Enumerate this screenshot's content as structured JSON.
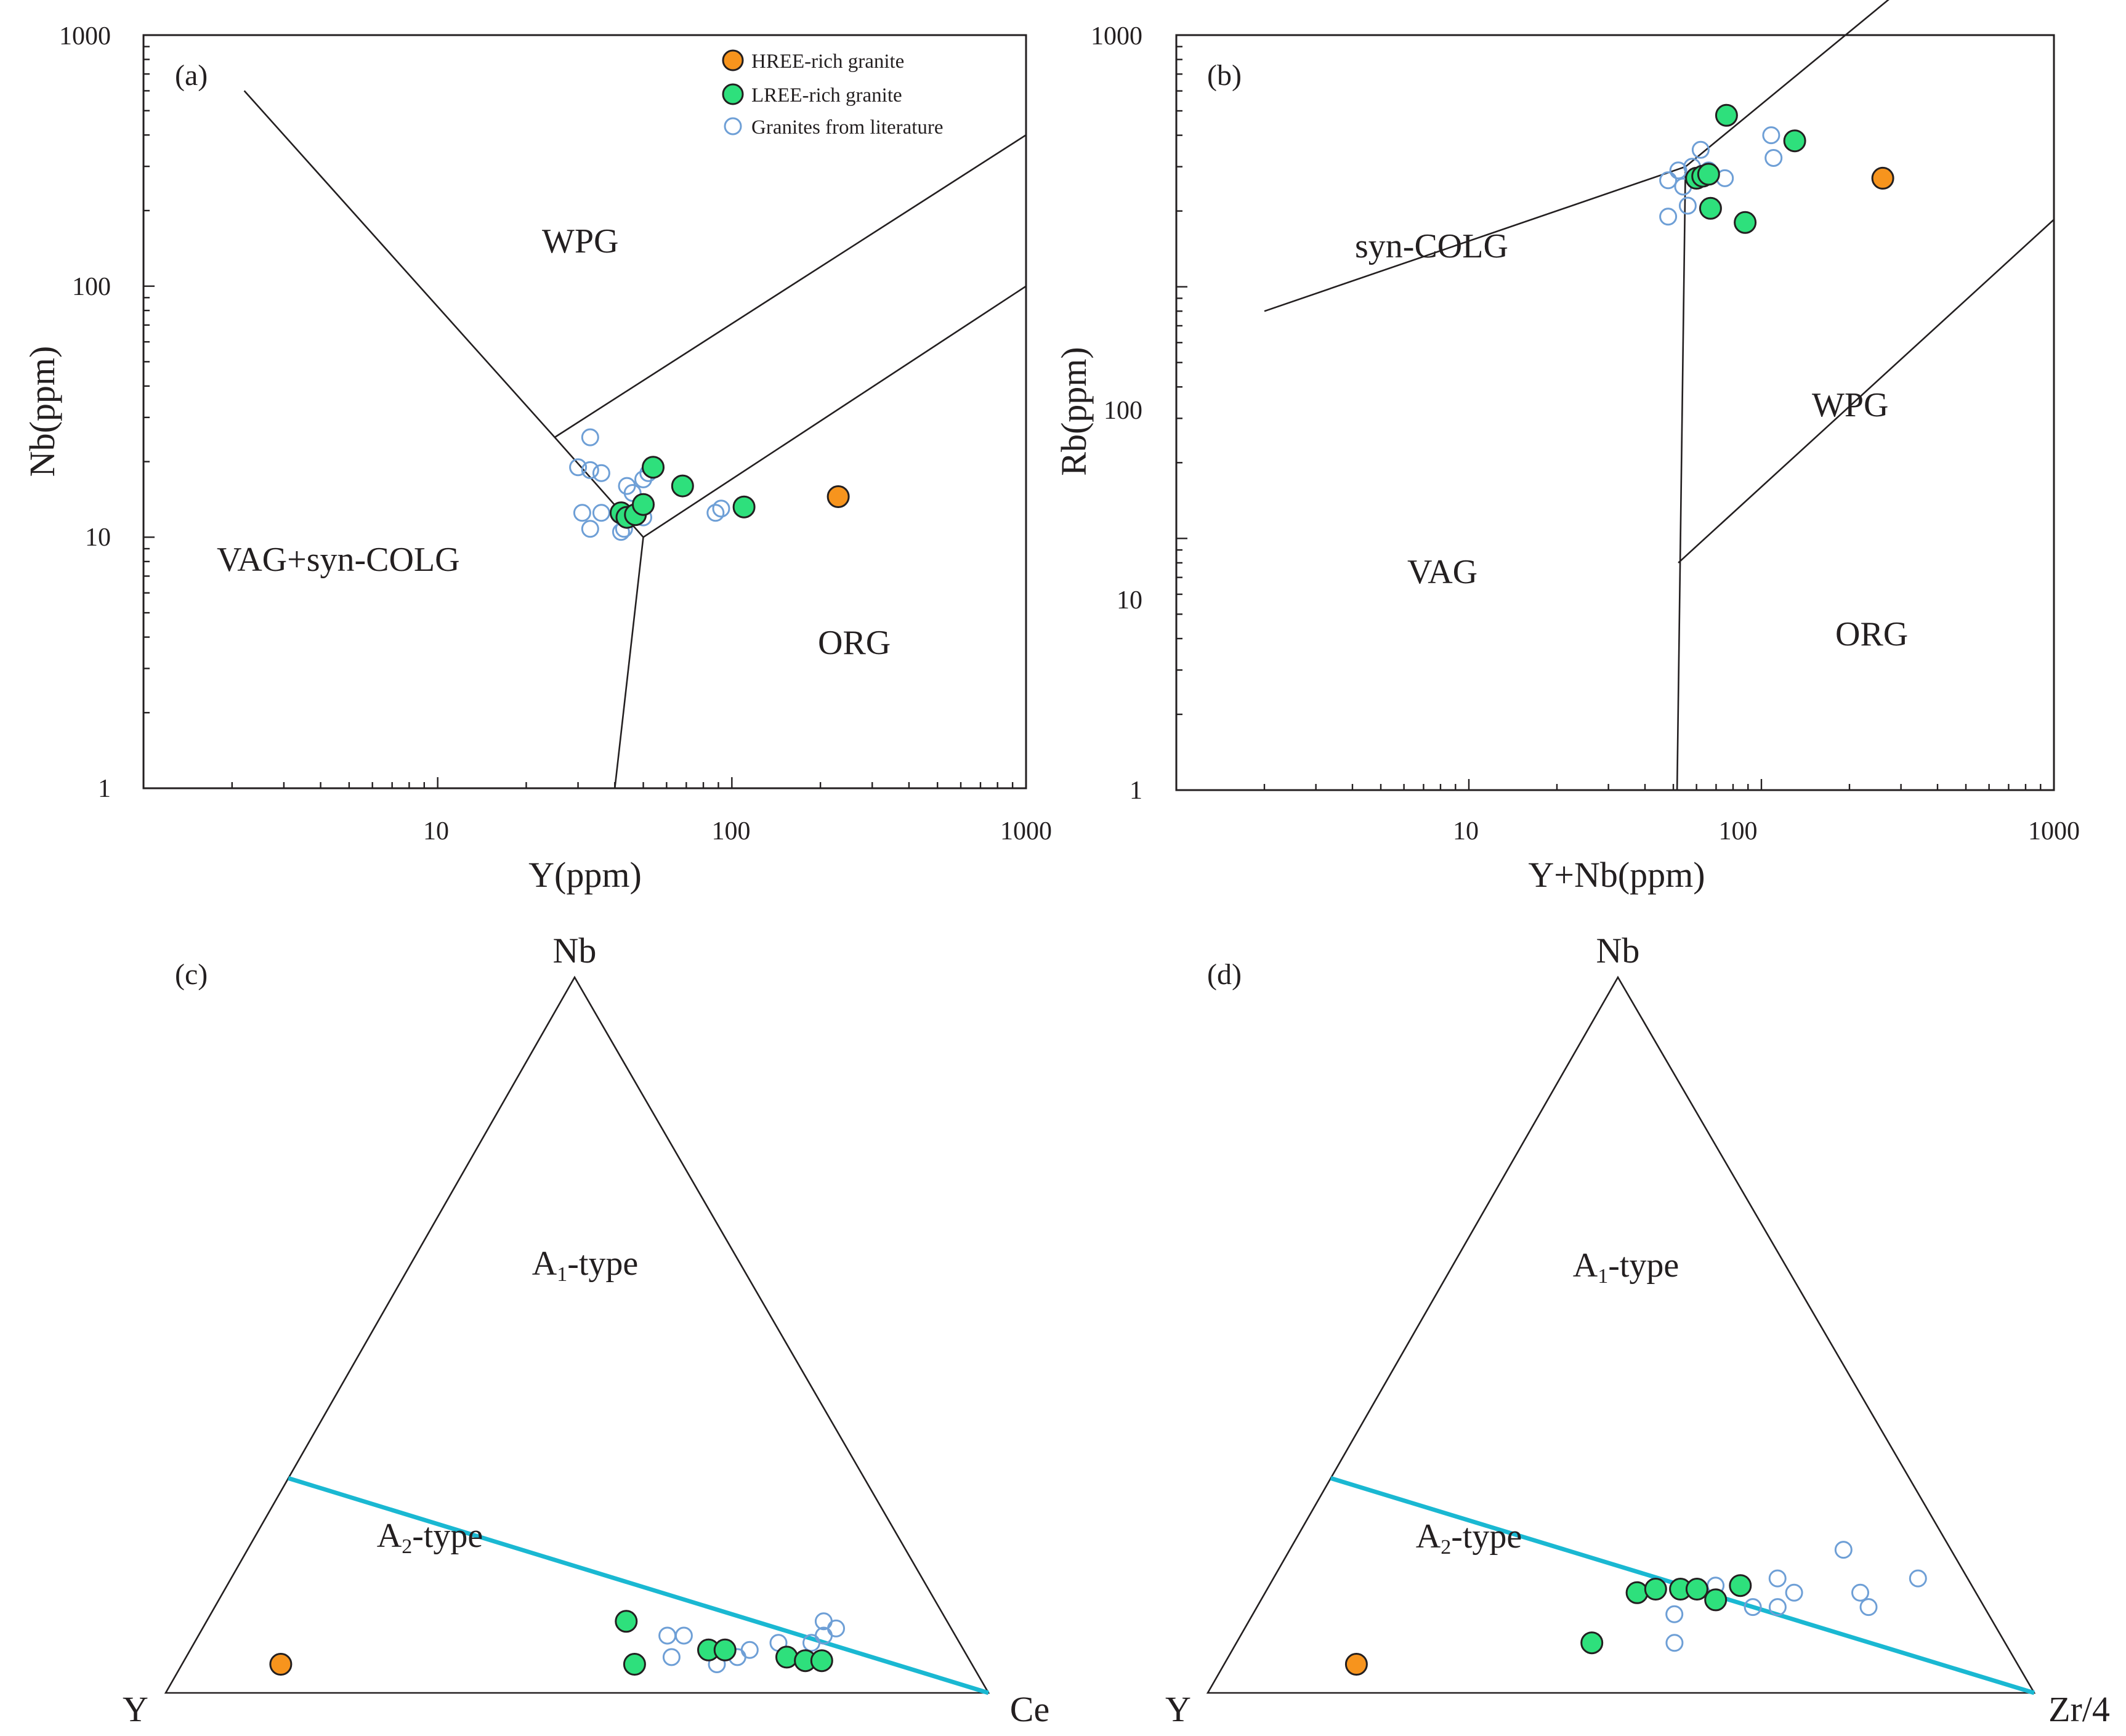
{
  "legend": {
    "items": [
      {
        "label": "HREE-rich granite",
        "kind": "hree"
      },
      {
        "label": "LREE-rich granite",
        "kind": "lree"
      },
      {
        "label": "Granites from literature",
        "kind": "lit"
      }
    ]
  },
  "colors": {
    "hree": "#f7941d",
    "lree": "#2ee07c",
    "literature": "#6e9fd6",
    "divider": "#1ab8d2",
    "ink": "#231f20"
  },
  "chart_data": [
    {
      "id": "a",
      "panel_label": "(a)",
      "type": "scatter",
      "xlabel": "Y(ppm)",
      "ylabel": "Nb(ppm)",
      "xscale": "log",
      "yscale": "log",
      "xlim": [
        1,
        1000
      ],
      "ylim": [
        1,
        1000
      ],
      "xticks": [
        "10",
        "100",
        "1000"
      ],
      "yticks": [
        "1",
        "10",
        "100",
        "1000"
      ],
      "regions": [
        "WPG",
        "VAG+syn-COLG",
        "ORG"
      ],
      "legend_position": "top-right",
      "boundaries": [
        [
          [
            2.2,
            600
          ],
          [
            25,
            25
          ],
          [
            50,
            10
          ],
          [
            40,
            1
          ]
        ],
        [
          [
            25,
            25
          ],
          [
            1000,
            400
          ]
        ],
        [
          [
            50,
            10
          ],
          [
            1000,
            100
          ]
        ]
      ],
      "series": [
        {
          "name": "HREE-rich granite",
          "kind": "hree",
          "points": [
            [
              230,
              14.5
            ]
          ]
        },
        {
          "name": "LREE-rich granite",
          "kind": "lree",
          "points": [
            [
              42,
              12.5
            ],
            [
              44,
              12
            ],
            [
              47,
              12.3
            ],
            [
              50,
              13.5
            ],
            [
              54,
              19
            ],
            [
              68,
              16
            ],
            [
              110,
              13.2
            ]
          ]
        },
        {
          "name": "Granites from literature",
          "kind": "lit",
          "points": [
            [
              33,
              25
            ],
            [
              30,
              19
            ],
            [
              33,
              18.5
            ],
            [
              36,
              18
            ],
            [
              44,
              16
            ],
            [
              46,
              15
            ],
            [
              50,
              17
            ],
            [
              52,
              18
            ],
            [
              31,
              12.5
            ],
            [
              36,
              12.5
            ],
            [
              43,
              10.8
            ],
            [
              42,
              10.5
            ],
            [
              33,
              10.8
            ],
            [
              50,
              12
            ],
            [
              88,
              12.5
            ],
            [
              92,
              13
            ]
          ]
        }
      ]
    },
    {
      "id": "b",
      "panel_label": "(b)",
      "type": "scatter",
      "xlabel": "Y+Nb(ppm)",
      "ylabel": "Rb(ppm)",
      "xscale": "log",
      "yscale": "log",
      "xlim": [
        1,
        1000
      ],
      "ylim": [
        1,
        1000
      ],
      "xticks": [
        "10",
        "100",
        "1000"
      ],
      "yticks": [
        "1",
        "10",
        "100",
        "1000"
      ],
      "regions": [
        "syn-COLG",
        "WPG",
        "VAG",
        "ORG"
      ],
      "boundaries": [
        [
          [
            2,
            80
          ],
          [
            55,
            300
          ],
          [
            400,
            2000
          ]
        ],
        [
          [
            55,
            300
          ],
          [
            51.5,
            1
          ]
        ],
        [
          [
            52,
            8
          ],
          [
            1000,
            185
          ]
        ]
      ],
      "series": [
        {
          "name": "HREE-rich granite",
          "kind": "hree",
          "points": [
            [
              260,
              270
            ]
          ]
        },
        {
          "name": "LREE-rich granite",
          "kind": "lree",
          "points": [
            [
              60,
              270
            ],
            [
              63,
              275
            ],
            [
              66,
              280
            ],
            [
              76,
              480
            ],
            [
              67,
              205
            ],
            [
              88,
              180
            ],
            [
              130,
              380
            ]
          ]
        },
        {
          "name": "Granites from literature",
          "kind": "lit",
          "points": [
            [
              48,
              265
            ],
            [
              52,
              290
            ],
            [
              54,
              250
            ],
            [
              58,
              300
            ],
            [
              62,
              350
            ],
            [
              66,
              290
            ],
            [
              75,
              270
            ],
            [
              108,
              400
            ],
            [
              110,
              325
            ],
            [
              48,
              190
            ],
            [
              56,
              210
            ]
          ]
        }
      ]
    },
    {
      "id": "c",
      "panel_label": "(c)",
      "type": "ternary",
      "apex_top": "Nb",
      "apex_left": "Y",
      "apex_right": "Ce",
      "regions": [
        "A1-type",
        "A2-type"
      ],
      "divider": [
        [
          0.3,
          0.7,
          0.0
        ],
        [
          0.0,
          0.0,
          1.0
        ]
      ],
      "point_format": "[Nb, Y, Ce] fractions",
      "series": [
        {
          "name": "HREE-rich granite",
          "kind": "hree",
          "points": [
            [
              0.04,
              0.84,
              0.12
            ]
          ]
        },
        {
          "name": "LREE-rich granite",
          "kind": "lree",
          "points": [
            [
              0.1,
              0.39,
              0.51
            ],
            [
              0.04,
              0.41,
              0.55
            ],
            [
              0.06,
              0.31,
              0.63
            ],
            [
              0.06,
              0.29,
              0.65
            ],
            [
              0.05,
              0.22,
              0.73
            ],
            [
              0.045,
              0.2,
              0.755
            ],
            [
              0.045,
              0.18,
              0.775
            ]
          ]
        },
        {
          "name": "Granites from literature",
          "kind": "lit",
          "points": [
            [
              0.08,
              0.35,
              0.57
            ],
            [
              0.08,
              0.33,
              0.59
            ],
            [
              0.05,
              0.36,
              0.59
            ],
            [
              0.06,
              0.26,
              0.68
            ],
            [
              0.07,
              0.22,
              0.71
            ],
            [
              0.09,
              0.14,
              0.77
            ],
            [
              0.08,
              0.16,
              0.76
            ],
            [
              0.05,
              0.28,
              0.67
            ],
            [
              0.04,
              0.31,
              0.65
            ],
            [
              0.07,
              0.18,
              0.75
            ],
            [
              0.1,
              0.15,
              0.75
            ]
          ]
        }
      ]
    },
    {
      "id": "d",
      "panel_label": "(d)",
      "type": "ternary",
      "apex_top": "Nb",
      "apex_left": "Y",
      "apex_right": "Zr/4",
      "regions": [
        "A1-type",
        "A2-type"
      ],
      "divider": [
        [
          0.3,
          0.7,
          0.0
        ],
        [
          0.0,
          0.0,
          1.0
        ]
      ],
      "point_format": "[Nb, Zr/4, Y] fractions",
      "series": [
        {
          "name": "HREE-rich granite",
          "kind": "hree",
          "points": [
            [
              0.04,
              0.16,
              0.8
            ]
          ]
        },
        {
          "name": "LREE-rich granite",
          "kind": "lree",
          "points": [
            [
              0.07,
              0.43,
              0.5
            ],
            [
              0.14,
              0.45,
              0.41
            ],
            [
              0.145,
              0.47,
              0.385
            ],
            [
              0.145,
              0.5,
              0.355
            ],
            [
              0.145,
              0.52,
              0.335
            ],
            [
              0.13,
              0.55,
              0.32
            ],
            [
              0.15,
              0.57,
              0.28
            ]
          ]
        },
        {
          "name": "Granites from literature",
          "kind": "lit",
          "points": [
            [
              0.11,
              0.51,
              0.38
            ],
            [
              0.15,
              0.54,
              0.31
            ],
            [
              0.12,
              0.6,
              0.28
            ],
            [
              0.2,
              0.67,
              0.13
            ],
            [
              0.16,
              0.61,
              0.23
            ],
            [
              0.14,
              0.64,
              0.22
            ],
            [
              0.14,
              0.72,
              0.14
            ],
            [
              0.12,
              0.74,
              0.14
            ],
            [
              0.16,
              0.78,
              0.06
            ],
            [
              0.07,
              0.53,
              0.4
            ],
            [
              0.12,
              0.63,
              0.25
            ]
          ]
        }
      ]
    }
  ]
}
